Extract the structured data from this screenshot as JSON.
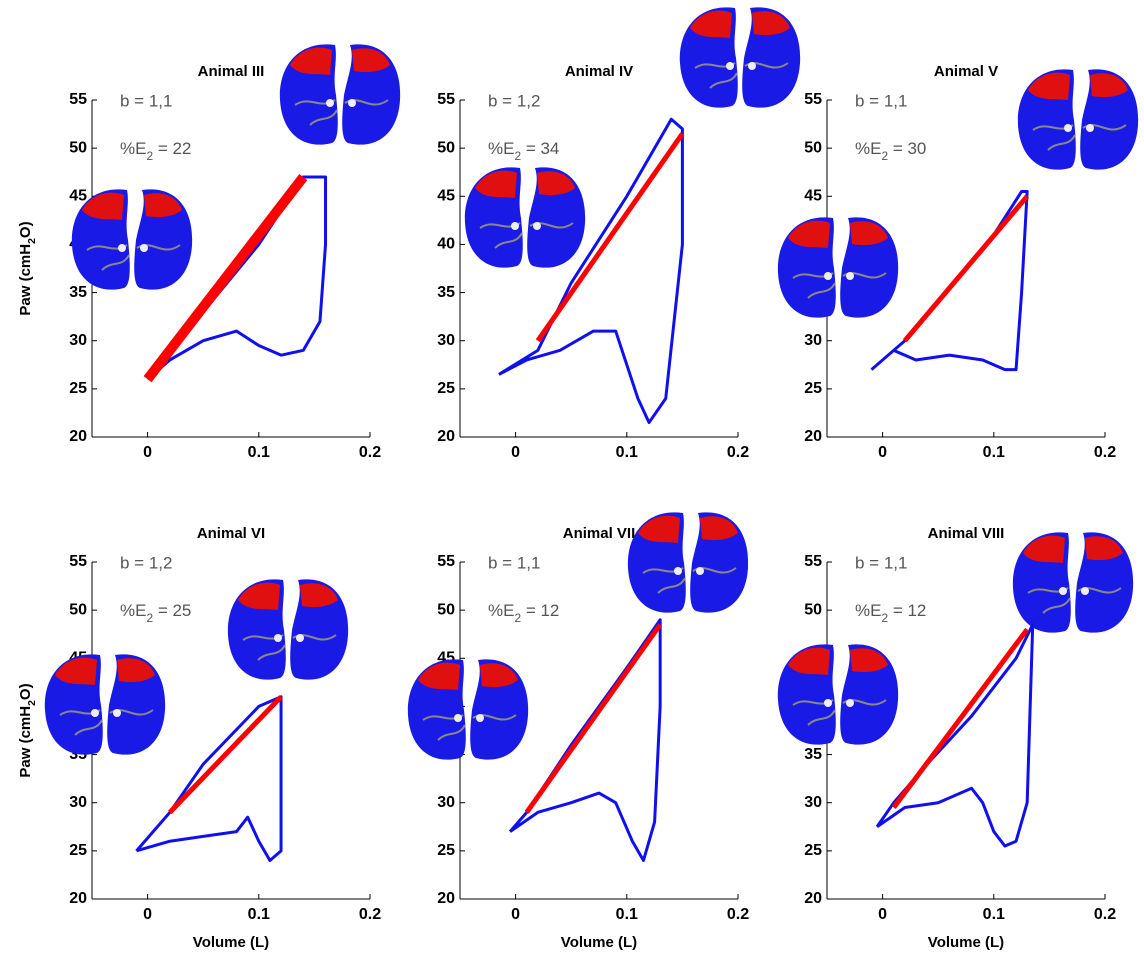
{
  "chart_data": [
    {
      "type": "line",
      "title": "Animal III",
      "annotation_b": "b = 1,1",
      "annotation_e": [
        "%E",
        "2",
        " = 22"
      ],
      "ylabel": [
        "Paw (cmH",
        "2",
        "O)"
      ],
      "xlim": [
        -0.05,
        0.2
      ],
      "xticks": [
        0,
        0.1,
        0.2
      ],
      "ylim": [
        20,
        55
      ],
      "yticks": [
        20,
        25,
        30,
        35,
        40,
        45,
        50,
        55
      ],
      "series": [
        {
          "color": "#1010ee",
          "x": [
            0,
            0.02,
            0.05,
            0.08,
            0.1,
            0.12,
            0.14,
            0.155,
            0.16,
            0.16,
            0.14,
            0.1,
            0.05,
            0
          ],
          "values": [
            26,
            28,
            30,
            31,
            29.5,
            28.5,
            29,
            32,
            40,
            47,
            47,
            40,
            33,
            26
          ]
        },
        {
          "color": "#ff0000",
          "x": [
            0,
            0.14
          ],
          "values": [
            26,
            47
          ]
        }
      ]
    },
    {
      "type": "line",
      "title": "Animal IV",
      "annotation_b": "b = 1,2",
      "annotation_e": [
        "%E",
        "2",
        " = 34"
      ],
      "xlim": [
        -0.05,
        0.2
      ],
      "xticks": [
        0,
        0.1,
        0.2
      ],
      "ylim": [
        20,
        55
      ],
      "yticks": [
        20,
        25,
        30,
        35,
        40,
        45,
        50,
        55
      ],
      "series": [
        {
          "color": "#1010ee",
          "x": [
            -0.015,
            0.01,
            0.04,
            0.07,
            0.09,
            0.11,
            0.12,
            0.135,
            0.15,
            0.15,
            0.14,
            0.1,
            0.05,
            0.02,
            -0.015
          ],
          "values": [
            26.5,
            28,
            29,
            31,
            31,
            24,
            21.5,
            24,
            40,
            52,
            53,
            45,
            36,
            29,
            26.5
          ]
        },
        {
          "color": "#ff0000",
          "x": [
            0.02,
            0.15
          ],
          "values": [
            30,
            51.5
          ]
        }
      ]
    },
    {
      "type": "line",
      "title": "Animal V",
      "annotation_b": "b = 1,1",
      "annotation_e": [
        "%E",
        "2",
        " = 30"
      ],
      "xlim": [
        -0.05,
        0.2
      ],
      "xticks": [
        0,
        0.1,
        0.2
      ],
      "ylim": [
        20,
        55
      ],
      "yticks": [
        20,
        25,
        30,
        35,
        40,
        45,
        50,
        55
      ],
      "series": [
        {
          "color": "#1010ee",
          "x": [
            -0.01,
            0.01,
            0.03,
            0.06,
            0.09,
            0.11,
            0.12,
            0.125,
            0.13,
            0.125,
            0.1,
            0.05,
            0.02,
            -0.01
          ],
          "values": [
            27,
            29,
            28,
            28.5,
            28,
            27,
            27,
            35,
            45.5,
            45.5,
            41,
            34,
            30,
            27
          ]
        },
        {
          "color": "#ff0000",
          "x": [
            0.02,
            0.13
          ],
          "values": [
            30,
            45
          ]
        }
      ]
    },
    {
      "type": "line",
      "title": "Animal VI",
      "annotation_b": "b = 1,2",
      "annotation_e": [
        "%E",
        "2",
        " = 25"
      ],
      "ylabel": [
        "Paw (cmH",
        "2",
        "O)"
      ],
      "xlabel": "Volume (L)",
      "xlim": [
        -0.05,
        0.2
      ],
      "xticks": [
        0,
        0.1,
        0.2
      ],
      "ylim": [
        20,
        55
      ],
      "yticks": [
        20,
        25,
        30,
        35,
        40,
        45,
        50,
        55
      ],
      "series": [
        {
          "color": "#1010ee",
          "x": [
            -0.01,
            0.02,
            0.05,
            0.08,
            0.09,
            0.1,
            0.11,
            0.12,
            0.12,
            0.1,
            0.05,
            0.02,
            -0.01
          ],
          "values": [
            25,
            26,
            26.5,
            27,
            28.5,
            26,
            24,
            25,
            41,
            40,
            34,
            29,
            25
          ]
        },
        {
          "color": "#ff0000",
          "x": [
            0.02,
            0.12
          ],
          "values": [
            29,
            41
          ]
        }
      ]
    },
    {
      "type": "line",
      "title": "Animal VII",
      "annotation_b": "b = 1,1",
      "annotation_e": [
        "%E",
        "2",
        " = 12"
      ],
      "xlabel": "Volume (L)",
      "xlim": [
        -0.05,
        0.2
      ],
      "xticks": [
        0,
        0.1,
        0.2
      ],
      "ylim": [
        20,
        55
      ],
      "yticks": [
        20,
        25,
        30,
        35,
        40,
        45,
        50,
        55
      ],
      "series": [
        {
          "color": "#1010ee",
          "x": [
            -0.005,
            0.02,
            0.05,
            0.075,
            0.09,
            0.105,
            0.115,
            0.125,
            0.13,
            0.13,
            0.1,
            0.05,
            0.01,
            -0.005
          ],
          "values": [
            27,
            29,
            30,
            31,
            30,
            26,
            24,
            28,
            40,
            49,
            44,
            36,
            29,
            27
          ]
        },
        {
          "color": "#ff0000",
          "x": [
            0.01,
            0.13
          ],
          "values": [
            29,
            48.5
          ]
        }
      ]
    },
    {
      "type": "line",
      "title": "Animal VIII",
      "annotation_b": "b = 1,1",
      "annotation_e": [
        "%E",
        "2",
        " = 12"
      ],
      "xlabel": "Volume (L)",
      "xlim": [
        -0.05,
        0.2
      ],
      "xticks": [
        0,
        0.1,
        0.2
      ],
      "ylim": [
        20,
        55
      ],
      "yticks": [
        20,
        25,
        30,
        35,
        40,
        45,
        50,
        55
      ],
      "series": [
        {
          "color": "#1010ee",
          "x": [
            -0.005,
            0.02,
            0.05,
            0.08,
            0.09,
            0.1,
            0.11,
            0.12,
            0.13,
            0.135,
            0.12,
            0.08,
            0.04,
            0.01,
            -0.005
          ],
          "values": [
            27.5,
            29.5,
            30,
            31.5,
            30,
            27,
            25.5,
            26,
            30,
            48.5,
            45,
            39,
            34,
            30,
            27.5
          ]
        },
        {
          "color": "#ff0000",
          "x": [
            0.01,
            0.13
          ],
          "values": [
            29.5,
            48
          ]
        }
      ]
    }
  ]
}
